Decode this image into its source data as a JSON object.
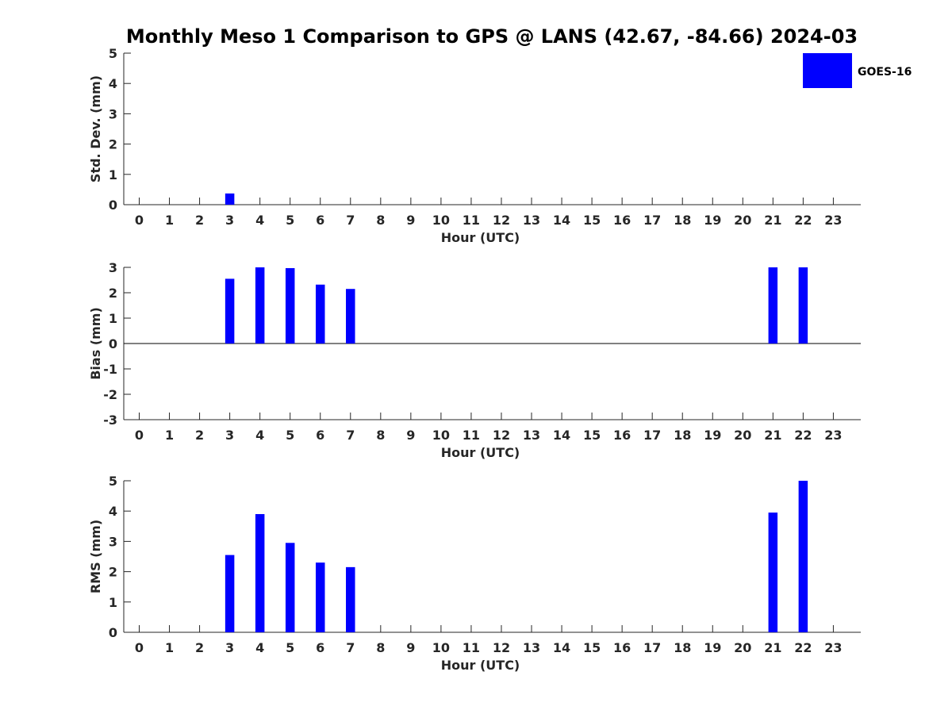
{
  "figure": {
    "title": "Monthly Meso 1 Comparison to GPS @ LANS (42.67, -84.66) 2024-03",
    "legend": {
      "label": "GOES-16",
      "color": "#0000ff",
      "placement": "top-right"
    }
  },
  "chart_data": [
    {
      "type": "bar",
      "ylabel": "Std. Dev. (mm)",
      "xlabel": "Hour (UTC)",
      "x": [
        0,
        1,
        2,
        3,
        4,
        5,
        6,
        7,
        8,
        9,
        10,
        11,
        12,
        13,
        14,
        15,
        16,
        17,
        18,
        19,
        20,
        21,
        22,
        23
      ],
      "ylim": [
        0,
        5
      ],
      "yticks": [
        0,
        1,
        2,
        3,
        4,
        5
      ],
      "series": [
        {
          "name": "GOES-16",
          "color": "#0000ff",
          "values": [
            0,
            0,
            0,
            0.37,
            0,
            0,
            0,
            0,
            0,
            0,
            0,
            0,
            0,
            0,
            0,
            0,
            0,
            0,
            0,
            0,
            0,
            0,
            0,
            0
          ]
        }
      ],
      "zero_line": false,
      "grid": false
    },
    {
      "type": "bar",
      "ylabel": "Bias (mm)",
      "xlabel": "Hour (UTC)",
      "x": [
        0,
        1,
        2,
        3,
        4,
        5,
        6,
        7,
        8,
        9,
        10,
        11,
        12,
        13,
        14,
        15,
        16,
        17,
        18,
        19,
        20,
        21,
        22,
        23
      ],
      "ylim": [
        -3,
        3
      ],
      "yticks": [
        -3,
        -2,
        -1,
        0,
        1,
        2,
        3
      ],
      "series": [
        {
          "name": "GOES-16",
          "color": "#0000ff",
          "values": [
            0,
            0,
            0,
            2.55,
            3.0,
            2.97,
            2.32,
            2.15,
            0,
            0,
            0,
            0,
            0,
            0,
            0,
            0,
            0,
            0,
            0,
            0,
            0,
            3.0,
            3.0,
            0
          ]
        }
      ],
      "zero_line": true,
      "grid": false
    },
    {
      "type": "bar",
      "ylabel": "RMS (mm)",
      "xlabel": "Hour (UTC)",
      "x": [
        0,
        1,
        2,
        3,
        4,
        5,
        6,
        7,
        8,
        9,
        10,
        11,
        12,
        13,
        14,
        15,
        16,
        17,
        18,
        19,
        20,
        21,
        22,
        23
      ],
      "ylim": [
        0,
        5
      ],
      "yticks": [
        0,
        1,
        2,
        3,
        4,
        5
      ],
      "series": [
        {
          "name": "GOES-16",
          "color": "#0000ff",
          "values": [
            0,
            0,
            0,
            2.55,
            3.9,
            2.95,
            2.3,
            2.15,
            0,
            0,
            0,
            0,
            0,
            0,
            0,
            0,
            0,
            0,
            0,
            0,
            0,
            3.95,
            5.0,
            0
          ]
        }
      ],
      "zero_line": false,
      "grid": false
    }
  ]
}
